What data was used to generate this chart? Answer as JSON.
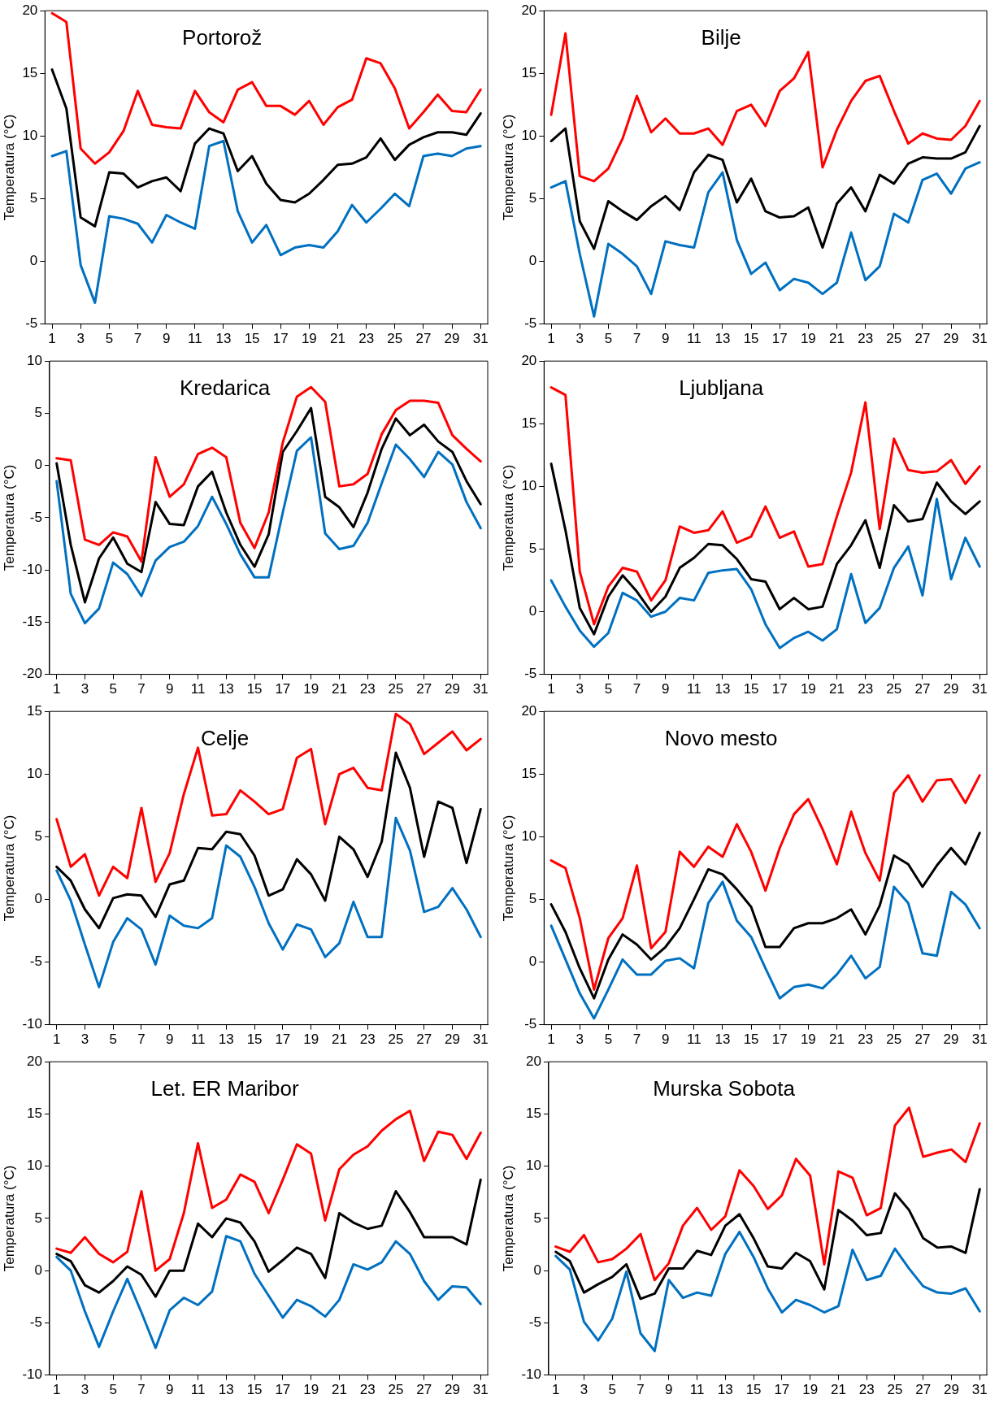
{
  "chart_data": [
    {
      "type": "line",
      "title": "Portorož",
      "ylabel": "Temperatura (°C)",
      "x": [
        1,
        2,
        3,
        4,
        5,
        6,
        7,
        8,
        9,
        10,
        11,
        12,
        13,
        14,
        15,
        16,
        17,
        18,
        19,
        20,
        21,
        22,
        23,
        24,
        25,
        26,
        27,
        28,
        29,
        30,
        31
      ],
      "xlim": [
        0.5,
        31.5
      ],
      "xticks": [
        1,
        3,
        5,
        7,
        9,
        11,
        13,
        15,
        17,
        19,
        21,
        23,
        25,
        27,
        29,
        31
      ],
      "ylim": [
        -5,
        20
      ],
      "yticks": [
        -5,
        0,
        5,
        10,
        15,
        20
      ],
      "series": [
        {
          "color": "#ff0000",
          "values": [
            19.8,
            19.1,
            9,
            7.8,
            8.7,
            10.4,
            13.6,
            10.9,
            10.7,
            10.6,
            13.6,
            11.9,
            11.1,
            13.7,
            14.3,
            12.4,
            12.4,
            11.7,
            12.8,
            10.9,
            12.3,
            12.9,
            16.2,
            15.8,
            13.8,
            10.6,
            11.9,
            13.3,
            12,
            11.9,
            13.7
          ]
        },
        {
          "color": "#000000",
          "values": [
            15.3,
            12.2,
            3.5,
            2.8,
            7.1,
            7,
            5.9,
            6.4,
            6.7,
            5.6,
            9.4,
            10.6,
            10.2,
            7.2,
            8.4,
            6.2,
            4.9,
            4.7,
            5.4,
            6.5,
            7.7,
            7.8,
            8.3,
            9.8,
            8.1,
            9.3,
            9.9,
            10.3,
            10.3,
            10.1,
            11.8
          ]
        },
        {
          "color": "#0070c0",
          "values": [
            8.4,
            8.8,
            -0.3,
            -3.3,
            3.6,
            3.4,
            3,
            1.5,
            3.7,
            3.1,
            2.6,
            9.2,
            9.6,
            4,
            1.5,
            2.9,
            0.5,
            1.1,
            1.3,
            1.1,
            2.4,
            4.5,
            3.1,
            4.2,
            5.4,
            4.4,
            8.4,
            8.6,
            8.4,
            9,
            9.2
          ]
        }
      ]
    },
    {
      "type": "line",
      "title": "Bilje",
      "ylabel": "Temperatura (°C)",
      "x": [
        1,
        2,
        3,
        4,
        5,
        6,
        7,
        8,
        9,
        10,
        11,
        12,
        13,
        14,
        15,
        16,
        17,
        18,
        19,
        20,
        21,
        22,
        23,
        24,
        25,
        26,
        27,
        28,
        29,
        30,
        31
      ],
      "xlim": [
        0.5,
        31.5
      ],
      "xticks": [
        1,
        3,
        5,
        7,
        9,
        11,
        13,
        15,
        17,
        19,
        21,
        23,
        25,
        27,
        29,
        31
      ],
      "ylim": [
        -5,
        20
      ],
      "yticks": [
        -5,
        0,
        5,
        10,
        15,
        20
      ],
      "series": [
        {
          "color": "#ff0000",
          "values": [
            11.7,
            18.2,
            6.8,
            6.4,
            7.4,
            9.8,
            13.2,
            10.3,
            11.4,
            10.2,
            10.2,
            10.6,
            9.3,
            12,
            12.5,
            10.8,
            13.6,
            14.6,
            16.7,
            7.5,
            10.5,
            12.8,
            14.4,
            14.8,
            12,
            9.4,
            10.2,
            9.8,
            9.7,
            10.8,
            12.8
          ]
        },
        {
          "color": "#000000",
          "values": [
            9.6,
            10.6,
            3.2,
            1,
            4.8,
            4,
            3.3,
            4.4,
            5.2,
            4.1,
            7.1,
            8.5,
            8.1,
            4.7,
            6.6,
            4,
            3.5,
            3.6,
            4.3,
            1.1,
            4.6,
            5.9,
            4,
            6.9,
            6.2,
            7.8,
            8.3,
            8.2,
            8.2,
            8.7,
            10.8
          ]
        },
        {
          "color": "#0070c0",
          "values": [
            5.9,
            6.4,
            0.6,
            -4.4,
            1.4,
            0.6,
            -0.4,
            -2.6,
            1.6,
            1.3,
            1.1,
            5.5,
            7.1,
            1.7,
            -1,
            -0.1,
            -2.3,
            -1.4,
            -1.7,
            -2.6,
            -1.7,
            2.3,
            -1.5,
            -0.4,
            3.8,
            3.1,
            6.5,
            7,
            5.4,
            7.4,
            7.9
          ]
        }
      ]
    },
    {
      "type": "line",
      "title": "Kredarica",
      "ylabel": "Temperatura (°C)",
      "x": [
        1,
        2,
        3,
        4,
        5,
        6,
        7,
        8,
        9,
        10,
        11,
        12,
        13,
        14,
        15,
        16,
        17,
        18,
        19,
        20,
        21,
        22,
        23,
        24,
        25,
        26,
        27,
        28,
        29,
        30,
        31
      ],
      "xlim": [
        0.5,
        31.5
      ],
      "xticks": [
        1,
        3,
        5,
        7,
        9,
        11,
        13,
        15,
        17,
        19,
        21,
        23,
        25,
        27,
        29,
        31
      ],
      "ylim": [
        -20,
        10
      ],
      "yticks": [
        -20,
        -15,
        -10,
        -5,
        0,
        5,
        10
      ],
      "series": [
        {
          "color": "#ff0000",
          "values": [
            0.7,
            0.5,
            -7.1,
            -7.6,
            -6.4,
            -6.8,
            -9.2,
            0.8,
            -3,
            -1.8,
            1.1,
            1.7,
            0.8,
            -5.5,
            -7.9,
            -4.5,
            2.2,
            6.6,
            7.5,
            6.1,
            -2,
            -1.8,
            -0.8,
            3,
            5.3,
            6.2,
            6.2,
            6,
            2.9,
            1.6,
            0.4
          ]
        },
        {
          "color": "#000000",
          "values": [
            0.2,
            -7.6,
            -13.1,
            -8.9,
            -6.9,
            -9.4,
            -10.2,
            -3.5,
            -5.6,
            -5.7,
            -2,
            -0.6,
            -4.5,
            -7.6,
            -9.7,
            -6.6,
            1.3,
            3.3,
            5.5,
            -3,
            -4,
            -5.9,
            -2.6,
            1.6,
            4.5,
            2.9,
            3.9,
            2.3,
            1.3,
            -1.5,
            -3.7
          ]
        },
        {
          "color": "#0070c0",
          "values": [
            -1.5,
            -12.3,
            -15.1,
            -13.7,
            -9.3,
            -10.4,
            -12.5,
            -9.1,
            -7.8,
            -7.3,
            -5.8,
            -3,
            -5.6,
            -8.5,
            -10.7,
            -10.7,
            -4.5,
            1.4,
            2.7,
            -6.5,
            -8,
            -7.7,
            -5.5,
            -1.7,
            2,
            0.6,
            -1.1,
            1.3,
            0.1,
            -3.5,
            -6
          ]
        }
      ]
    },
    {
      "type": "line",
      "title": "Ljubljana",
      "ylabel": "Temperatura (°C)",
      "x": [
        1,
        2,
        3,
        4,
        5,
        6,
        7,
        8,
        9,
        10,
        11,
        12,
        13,
        14,
        15,
        16,
        17,
        18,
        19,
        20,
        21,
        22,
        23,
        24,
        25,
        26,
        27,
        28,
        29,
        30,
        31
      ],
      "xlim": [
        0.5,
        31.5
      ],
      "xticks": [
        1,
        3,
        5,
        7,
        9,
        11,
        13,
        15,
        17,
        19,
        21,
        23,
        25,
        27,
        29,
        31
      ],
      "ylim": [
        -5,
        20
      ],
      "yticks": [
        -5,
        0,
        5,
        10,
        15,
        20
      ],
      "series": [
        {
          "color": "#ff0000",
          "values": [
            17.9,
            17.3,
            3.2,
            -1,
            2,
            3.5,
            3.2,
            0.9,
            2.5,
            6.8,
            6.3,
            6.5,
            8,
            5.5,
            6,
            8.4,
            5.9,
            6.4,
            3.6,
            3.8,
            7.6,
            11.1,
            16.7,
            6.6,
            13.8,
            11.3,
            11.1,
            11.2,
            12.1,
            10.2,
            11.6
          ]
        },
        {
          "color": "#000000",
          "values": [
            11.8,
            6.5,
            0.3,
            -1.8,
            1.2,
            2.9,
            1.6,
            0,
            1.2,
            3.5,
            4.3,
            5.4,
            5.3,
            4.2,
            2.6,
            2.4,
            0.2,
            1.1,
            0.2,
            0.4,
            3.8,
            5.3,
            7.3,
            3.5,
            8.5,
            7.2,
            7.4,
            10.3,
            8.8,
            7.8,
            8.8
          ]
        },
        {
          "color": "#0070c0",
          "values": [
            2.5,
            0.4,
            -1.5,
            -2.8,
            -1.7,
            1.5,
            0.9,
            -0.4,
            0,
            1.1,
            0.9,
            3.1,
            3.3,
            3.4,
            1.8,
            -1,
            -2.9,
            -2.1,
            -1.6,
            -2.3,
            -1.4,
            3,
            -0.9,
            0.3,
            3.5,
            5.2,
            1.3,
            9,
            2.6,
            5.9,
            3.6
          ]
        }
      ]
    },
    {
      "type": "line",
      "title": "Celje",
      "ylabel": "Temperatura (°C)",
      "x": [
        1,
        2,
        3,
        4,
        5,
        6,
        7,
        8,
        9,
        10,
        11,
        12,
        13,
        14,
        15,
        16,
        17,
        18,
        19,
        20,
        21,
        22,
        23,
        24,
        25,
        26,
        27,
        28,
        29,
        30,
        31
      ],
      "xlim": [
        0.5,
        31.5
      ],
      "xticks": [
        1,
        3,
        5,
        7,
        9,
        11,
        13,
        15,
        17,
        19,
        21,
        23,
        25,
        27,
        29,
        31
      ],
      "ylim": [
        -10,
        15
      ],
      "yticks": [
        -10,
        -5,
        0,
        5,
        10,
        15
      ],
      "series": [
        {
          "color": "#ff0000",
          "values": [
            6.4,
            2.6,
            3.6,
            0.3,
            2.6,
            1.7,
            7.3,
            1.4,
            3.7,
            8.4,
            12.1,
            6.7,
            6.8,
            8.7,
            7.8,
            6.8,
            7.2,
            11.3,
            12,
            6,
            10,
            10.5,
            8.9,
            8.7,
            14.8,
            14,
            11.6,
            12.5,
            13.4,
            11.9,
            12.8
          ]
        },
        {
          "color": "#000000",
          "values": [
            2.6,
            1.5,
            -0.8,
            -2.3,
            0.1,
            0.4,
            0.3,
            -1.4,
            1.2,
            1.5,
            4.1,
            4,
            5.4,
            5.2,
            3.5,
            0.3,
            0.8,
            3.2,
            2,
            -0.1,
            5,
            4,
            1.8,
            4.6,
            11.7,
            8.9,
            3.4,
            7.8,
            7.3,
            2.9,
            7.2
          ]
        },
        {
          "color": "#0070c0",
          "values": [
            2.3,
            -0.1,
            -3.6,
            -7,
            -3.4,
            -1.5,
            -2.4,
            -5.2,
            -1.3,
            -2.1,
            -2.3,
            -1.5,
            4.3,
            3.4,
            1,
            -1.9,
            -4,
            -2,
            -2.4,
            -4.6,
            -3.5,
            -0.2,
            -3,
            -3,
            6.5,
            3.9,
            -1,
            -0.6,
            0.9,
            -0.8,
            -3
          ]
        }
      ]
    },
    {
      "type": "line",
      "title": "Novo mesto",
      "ylabel": "Temperatura (°C)",
      "x": [
        1,
        2,
        3,
        4,
        5,
        6,
        7,
        8,
        9,
        10,
        11,
        12,
        13,
        14,
        15,
        16,
        17,
        18,
        19,
        20,
        21,
        22,
        23,
        24,
        25,
        26,
        27,
        28,
        29,
        30,
        31
      ],
      "xlim": [
        0.5,
        31.5
      ],
      "xticks": [
        1,
        3,
        5,
        7,
        9,
        11,
        13,
        15,
        17,
        19,
        21,
        23,
        25,
        27,
        29,
        31
      ],
      "ylim": [
        -5,
        20
      ],
      "yticks": [
        -5,
        0,
        5,
        10,
        15,
        20
      ],
      "series": [
        {
          "color": "#ff0000",
          "values": [
            8.1,
            7.5,
            3.5,
            -2.2,
            1.9,
            3.5,
            7.7,
            1.1,
            2.4,
            8.8,
            7.6,
            9.2,
            8.4,
            11,
            8.8,
            5.7,
            9.1,
            11.8,
            13,
            10.6,
            7.8,
            12,
            8.7,
            6.5,
            13.5,
            14.9,
            12.8,
            14.5,
            14.6,
            12.7,
            14.9
          ]
        },
        {
          "color": "#000000",
          "values": [
            4.6,
            2.4,
            -0.5,
            -2.9,
            0.2,
            2.2,
            1.4,
            0.2,
            1.2,
            2.7,
            5,
            7.4,
            7,
            5.8,
            4.4,
            1.2,
            1.2,
            2.7,
            3.1,
            3.1,
            3.5,
            4.2,
            2.2,
            4.5,
            8.5,
            7.8,
            6,
            7.7,
            9.1,
            7.8,
            10.3
          ]
        },
        {
          "color": "#0070c0",
          "values": [
            2.9,
            0.2,
            -2.5,
            -4.5,
            -2.2,
            0.2,
            -1,
            -1,
            0.1,
            0.3,
            -0.5,
            4.7,
            6.4,
            3.3,
            2,
            -0.5,
            -2.9,
            -2,
            -1.8,
            -2.1,
            -1,
            0.5,
            -1.3,
            -0.4,
            6,
            4.7,
            0.7,
            0.5,
            5.6,
            4.6,
            2.7
          ]
        }
      ]
    },
    {
      "type": "line",
      "title": "Let. ER Maribor",
      "ylabel": "Temperatura (°C)",
      "x": [
        1,
        2,
        3,
        4,
        5,
        6,
        7,
        8,
        9,
        10,
        11,
        12,
        13,
        14,
        15,
        16,
        17,
        18,
        19,
        20,
        21,
        22,
        23,
        24,
        25,
        26,
        27,
        28,
        29,
        30,
        31
      ],
      "xlim": [
        0.5,
        31.5
      ],
      "xticks": [
        1,
        3,
        5,
        7,
        9,
        11,
        13,
        15,
        17,
        19,
        21,
        23,
        25,
        27,
        29,
        31
      ],
      "ylim": [
        -10,
        20
      ],
      "yticks": [
        -10,
        -5,
        0,
        5,
        10,
        15,
        20
      ],
      "series": [
        {
          "color": "#ff0000",
          "values": [
            2.1,
            1.7,
            3.2,
            1.6,
            0.8,
            1.8,
            7.6,
            0,
            1.1,
            5.5,
            12.2,
            6,
            6.8,
            9.2,
            8.5,
            5.5,
            8.7,
            12.1,
            11.2,
            4.8,
            9.7,
            11.1,
            11.9,
            13.4,
            14.5,
            15.3,
            10.5,
            13.3,
            13,
            10.7,
            13.2
          ]
        },
        {
          "color": "#000000",
          "values": [
            1.6,
            0.9,
            -1.4,
            -2.1,
            -1,
            0.4,
            -0.4,
            -2.5,
            0,
            0,
            4.5,
            3.2,
            5,
            4.6,
            2.8,
            -0.1,
            1,
            2.2,
            1.6,
            -0.7,
            5.5,
            4.6,
            4,
            4.3,
            7.6,
            5.6,
            3.2,
            3.2,
            3.2,
            2.5,
            8.7
          ]
        },
        {
          "color": "#0070c0",
          "values": [
            1.3,
            0,
            -3.9,
            -7.3,
            -3.9,
            -0.8,
            -4,
            -7.4,
            -3.8,
            -2.6,
            -3.3,
            -2,
            3.3,
            2.8,
            -0.3,
            -2.4,
            -4.5,
            -2.8,
            -3.4,
            -4.4,
            -2.8,
            0.6,
            0.1,
            0.8,
            2.8,
            1.6,
            -1,
            -2.8,
            -1.5,
            -1.6,
            -3.2
          ]
        }
      ]
    },
    {
      "type": "line",
      "title": "Murska Sobota",
      "ylabel": "Temperatura (°C)",
      "x": [
        1,
        2,
        3,
        4,
        5,
        6,
        7,
        8,
        9,
        10,
        11,
        12,
        13,
        14,
        15,
        16,
        17,
        18,
        19,
        20,
        21,
        22,
        23,
        24,
        25,
        26,
        27,
        28,
        29,
        30,
        31
      ],
      "xlim": [
        0.5,
        31.5
      ],
      "xticks": [
        1,
        3,
        5,
        7,
        9,
        11,
        13,
        15,
        17,
        19,
        21,
        23,
        25,
        27,
        29,
        31
      ],
      "ylim": [
        -10,
        20
      ],
      "yticks": [
        -10,
        -5,
        0,
        5,
        10,
        15,
        20
      ],
      "series": [
        {
          "color": "#ff0000",
          "values": [
            2.3,
            1.8,
            3.4,
            0.8,
            1.1,
            2.1,
            3.5,
            -0.9,
            0.7,
            4.3,
            6,
            3.9,
            5.2,
            9.6,
            8.1,
            5.9,
            7.2,
            10.7,
            9.1,
            0.6,
            9.5,
            8.9,
            5.3,
            6,
            13.9,
            15.6,
            10.9,
            11.3,
            11.6,
            10.4,
            14.1
          ]
        },
        {
          "color": "#000000",
          "values": [
            1.8,
            0.9,
            -2.1,
            -1.3,
            -0.6,
            0.6,
            -2.7,
            -2.2,
            0.2,
            0.2,
            1.9,
            1.5,
            4.3,
            5.4,
            3.1,
            0.4,
            0.2,
            1.7,
            0.9,
            -1.8,
            5.8,
            4.8,
            3.4,
            3.6,
            7.4,
            5.8,
            3.1,
            2.2,
            2.3,
            1.7,
            7.8
          ]
        },
        {
          "color": "#0070c0",
          "values": [
            1.4,
            0.1,
            -4.9,
            -6.7,
            -4.6,
            -0.1,
            -6,
            -7.7,
            -0.9,
            -2.6,
            -2.1,
            -2.4,
            1.6,
            3.7,
            1.3,
            -1.7,
            -4,
            -2.8,
            -3.3,
            -4,
            -3.4,
            2,
            -0.9,
            -0.5,
            2.1,
            0.2,
            -1.5,
            -2.1,
            -2.2,
            -1.7,
            -3.9
          ]
        }
      ]
    }
  ]
}
